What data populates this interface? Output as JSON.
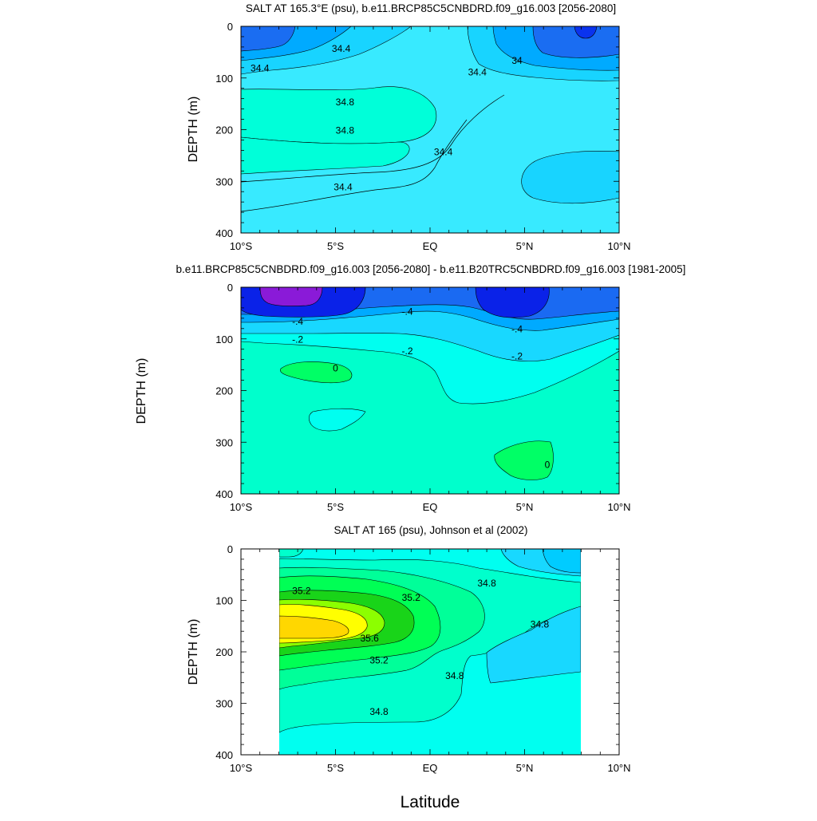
{
  "chart_data": [
    {
      "type": "contour",
      "title": "SALT AT 165.3°E (psu), b.e11.BRCP85C5CNBDRD.f09_g16.003 [2056-2080]",
      "xlabel": "",
      "ylabel": "DEPTH (m)",
      "xlim": [
        -10,
        10
      ],
      "ylim": [
        400,
        0
      ],
      "x_ticks": [
        -10,
        -5,
        0,
        5,
        10
      ],
      "x_tick_labels": [
        "10°S",
        "5°S",
        "EQ",
        "5°N",
        "10°N"
      ],
      "y_ticks": [
        0,
        100,
        200,
        300,
        400
      ],
      "y_tick_labels": [
        "0",
        "100",
        "200",
        "300",
        "400"
      ],
      "fill_colors": [
        "#0a33ee",
        "#1a6df2",
        "#00aaff",
        "#18d4ff",
        "#38eaff",
        "#00ffd9"
      ],
      "contour_labels": [
        {
          "text": "34.4",
          "x": -4.7,
          "y": 45
        },
        {
          "text": "34.4",
          "x": -9.0,
          "y": 83
        },
        {
          "text": "34",
          "x": 4.6,
          "y": 68
        },
        {
          "text": "34.4",
          "x": 2.5,
          "y": 90
        },
        {
          "text": "34.8",
          "x": -4.5,
          "y": 148
        },
        {
          "text": "34.8",
          "x": -4.5,
          "y": 203
        },
        {
          "text": "34.4",
          "x": 0.7,
          "y": 245
        },
        {
          "text": "34.4",
          "x": -4.6,
          "y": 313
        }
      ]
    },
    {
      "type": "contour",
      "title": "b.e11.BRCP85C5CNBDRD.f09_g16.003 [2056-2080] - b.e11.B20TRC5CNBDRD.f09_g16.003 [1981-2005]",
      "xlabel": "",
      "ylabel": "DEPTH (m)",
      "xlim": [
        -10,
        10
      ],
      "ylim": [
        400,
        0
      ],
      "x_ticks": [
        -10,
        -5,
        0,
        5,
        10
      ],
      "x_tick_labels": [
        "10°S",
        "5°S",
        "EQ",
        "5°N",
        "10°N"
      ],
      "y_ticks": [
        0,
        100,
        200,
        300,
        400
      ],
      "y_tick_labels": [
        "0",
        "100",
        "200",
        "300",
        "400"
      ],
      "fill_colors": [
        "#8a1ad8",
        "#0a22e8",
        "#1a6af2",
        "#00aaff",
        "#18d8ff",
        "#00fff0",
        "#00ffcc",
        "#00ff66"
      ],
      "contour_labels": [
        {
          "text": "-.4",
          "x": -7.0,
          "y": 68
        },
        {
          "text": "-.2",
          "x": -7.0,
          "y": 103
        },
        {
          "text": "-.4",
          "x": -1.2,
          "y": 49
        },
        {
          "text": "-.2",
          "x": -1.2,
          "y": 125
        },
        {
          "text": "-.4",
          "x": 4.6,
          "y": 83
        },
        {
          "text": "-.2",
          "x": 4.6,
          "y": 135
        },
        {
          "text": "0",
          "x": -5.0,
          "y": 158
        },
        {
          "text": "0",
          "x": 6.2,
          "y": 345
        }
      ]
    },
    {
      "type": "contour",
      "title": "SALT AT 165 (psu), Johnson et al (2002)",
      "xlabel": "Latitude",
      "ylabel": "DEPTH (m)",
      "xlim": [
        -10,
        10
      ],
      "ylim": [
        400,
        0
      ],
      "x_ticks": [
        -10,
        -5,
        0,
        5,
        10
      ],
      "x_tick_labels": [
        "10°S",
        "5°S",
        "EQ",
        "5°N",
        "10°N"
      ],
      "y_ticks": [
        0,
        100,
        200,
        300,
        400
      ],
      "y_tick_labels": [
        "0",
        "100",
        "200",
        "300",
        "400"
      ],
      "data_x_range": [
        -8,
        8
      ],
      "fill_colors": [
        "#18d8ff",
        "#00fff0",
        "#00ffcc",
        "#00ff99",
        "#00ff55",
        "#19d419",
        "#8cff00",
        "#ffff00",
        "#ffd700"
      ],
      "contour_labels": [
        {
          "text": "35.2",
          "x": -6.8,
          "y": 83
        },
        {
          "text": "35.2",
          "x": -1.0,
          "y": 96
        },
        {
          "text": "34.8",
          "x": 3.0,
          "y": 68
        },
        {
          "text": "35.6",
          "x": -3.2,
          "y": 175
        },
        {
          "text": "35.2",
          "x": -2.7,
          "y": 218
        },
        {
          "text": "34.8",
          "x": 1.3,
          "y": 248
        },
        {
          "text": "34.8",
          "x": 5.8,
          "y": 148
        },
        {
          "text": "34.8",
          "x": -2.7,
          "y": 318
        }
      ]
    }
  ]
}
